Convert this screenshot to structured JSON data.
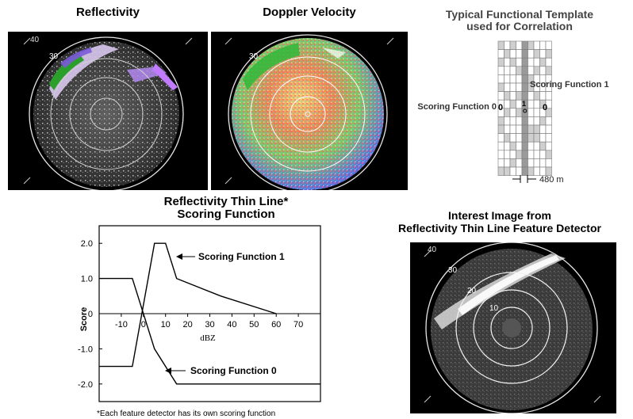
{
  "panels": {
    "reflectivity": {
      "title": "Reflectivity",
      "range_labels": [
        "40",
        "30"
      ]
    },
    "doppler": {
      "title": "Doppler Velocity",
      "range_labels": [
        "30"
      ]
    },
    "interest": {
      "title_line1": "Interest Image from",
      "title_line2": "Reflectivity Thin Line Feature Detector",
      "range_labels": [
        "40",
        "30",
        "20",
        "10"
      ]
    }
  },
  "template": {
    "title_line1": "Typical Functional Template",
    "title_line2": "used for Correlation",
    "label_sf1": "Scoring Function 1",
    "label_sf0": "Scoring Function 0",
    "cell_marks": [
      "0",
      "1",
      "0"
    ],
    "scale_label": "480 m"
  },
  "chart_data": {
    "type": "line",
    "title": "Reflectivity Thin Line* Scoring Function",
    "title_line1": "Reflectivity Thin Line*",
    "title_line2": "Scoring Function",
    "xlabel": "dBZ",
    "ylabel": "Score",
    "xlim": [
      -20,
      80
    ],
    "ylim": [
      -2.5,
      2.5
    ],
    "x_ticks": [
      -10,
      0,
      10,
      20,
      30,
      40,
      50,
      60,
      70
    ],
    "x_tick_labels": [
      "-10",
      "0",
      "10",
      "20",
      "30",
      "40",
      "50",
      "60",
      "70"
    ],
    "y_ticks": [
      2.0,
      1.0,
      0,
      -1.0,
      -2.0
    ],
    "y_tick_labels": [
      "2.0",
      "1.0",
      "0",
      "-1.0",
      "-2.0"
    ],
    "series": [
      {
        "name": "Scoring Function 1",
        "x": [
          -20,
          -5,
          5,
          10,
          15,
          35,
          60
        ],
        "y": [
          -1.5,
          -1.5,
          2.0,
          2.0,
          1.0,
          0.5,
          0.0
        ]
      },
      {
        "name": "Scoring Function 0",
        "x": [
          -20,
          -5,
          5,
          15,
          80
        ],
        "y": [
          1.0,
          1.0,
          -1.0,
          -2.0,
          -2.0
        ]
      }
    ],
    "annotations": [
      "Scoring Function 1",
      "Scoring Function 0"
    ],
    "footnote": "*Each feature detector has its own scoring function",
    "grid": false
  }
}
